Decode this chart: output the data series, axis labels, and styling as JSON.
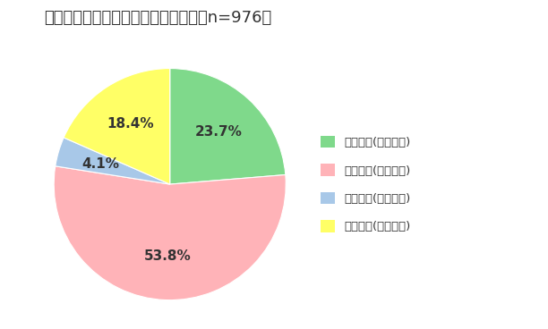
{
  "title": "テレワークへの関心と経験について（n=976）",
  "slices": [
    23.7,
    53.8,
    4.1,
    18.4
  ],
  "labels": [
    "興味あり(経験あり)",
    "興味あり(経験なし)",
    "興味なし(経験あり)",
    "興味なし(経験なし)"
  ],
  "colors": [
    "#7FD98B",
    "#FFB3B8",
    "#A8C8E8",
    "#FFFF66"
  ],
  "pct_labels": [
    "23.7%",
    "53.8%",
    "4.1%",
    "18.4%"
  ],
  "startangle": 90,
  "title_fontsize": 13,
  "pct_fontsize": 11,
  "legend_fontsize": 9.5,
  "background_color": "#ffffff",
  "text_color": "#333333"
}
